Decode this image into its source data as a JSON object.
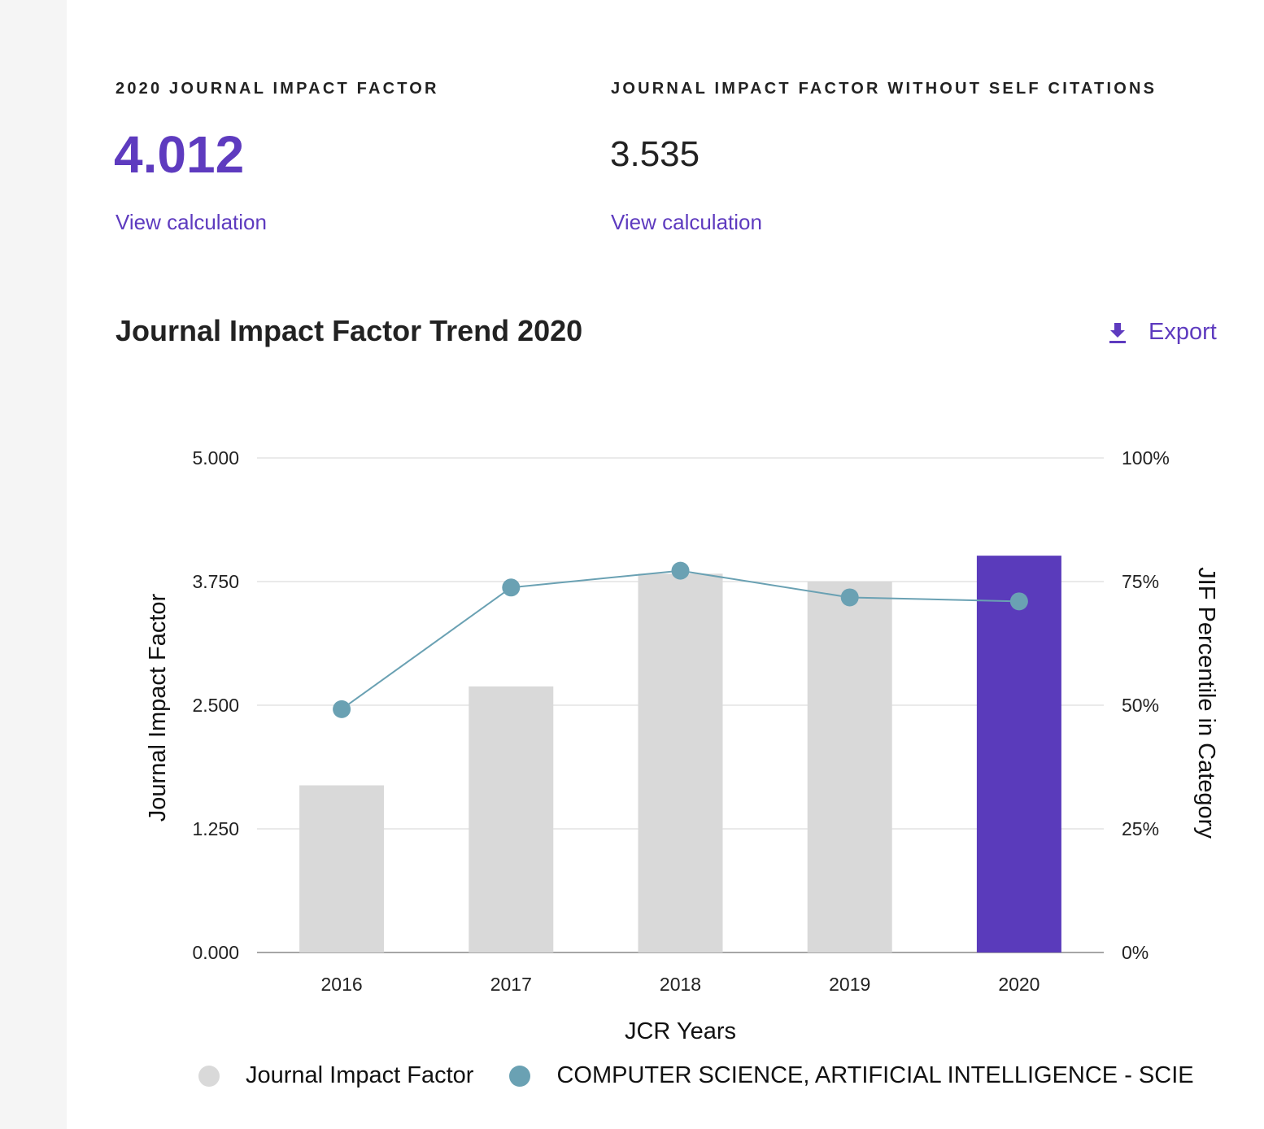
{
  "metrics": {
    "jif": {
      "label": "2020 JOURNAL IMPACT FACTOR",
      "value": "4.012",
      "link": "View calculation"
    },
    "jif_no_self": {
      "label": "JOURNAL IMPACT FACTOR WITHOUT SELF CITATIONS",
      "value": "3.535",
      "link": "View calculation"
    }
  },
  "chart_header": {
    "title": "Journal Impact Factor Trend 2020",
    "export_label": "Export"
  },
  "colors": {
    "accent": "#5e3bbf",
    "bar_default": "#d9d9d9",
    "bar_highlight": "#5a3bbb",
    "line": "#6aa1b3",
    "grid": "#e3e3e3",
    "axis": "#888888"
  },
  "chart_data": {
    "type": "bar",
    "title": "Journal Impact Factor Trend 2020",
    "xlabel": "JCR Years",
    "ylabel": "Journal Impact Factor",
    "y2label": "JIF Percentile in Category",
    "categories": [
      "2016",
      "2017",
      "2018",
      "2019",
      "2020"
    ],
    "ylim": [
      0,
      5
    ],
    "y2lim": [
      0,
      100
    ],
    "yticks": [
      "0.000",
      "1.250",
      "2.500",
      "3.750",
      "5.000"
    ],
    "y2ticks": [
      "0%",
      "25%",
      "50%",
      "75%",
      "100%"
    ],
    "highlight_category": "2020",
    "series": [
      {
        "name": "Journal Impact Factor",
        "type": "bar",
        "axis": "left",
        "values": [
          1.69,
          2.69,
          3.83,
          3.75,
          4.012
        ]
      },
      {
        "name": "COMPUTER SCIENCE, ARTIFICIAL INTELLIGENCE - SCIE",
        "type": "line",
        "axis": "right",
        "values": [
          49.2,
          73.8,
          77.2,
          71.8,
          71.0
        ]
      }
    ],
    "legend": [
      "Journal Impact Factor",
      "COMPUTER SCIENCE, ARTIFICIAL INTELLIGENCE - SCIE"
    ],
    "legend_position": "bottom",
    "grid": true
  }
}
